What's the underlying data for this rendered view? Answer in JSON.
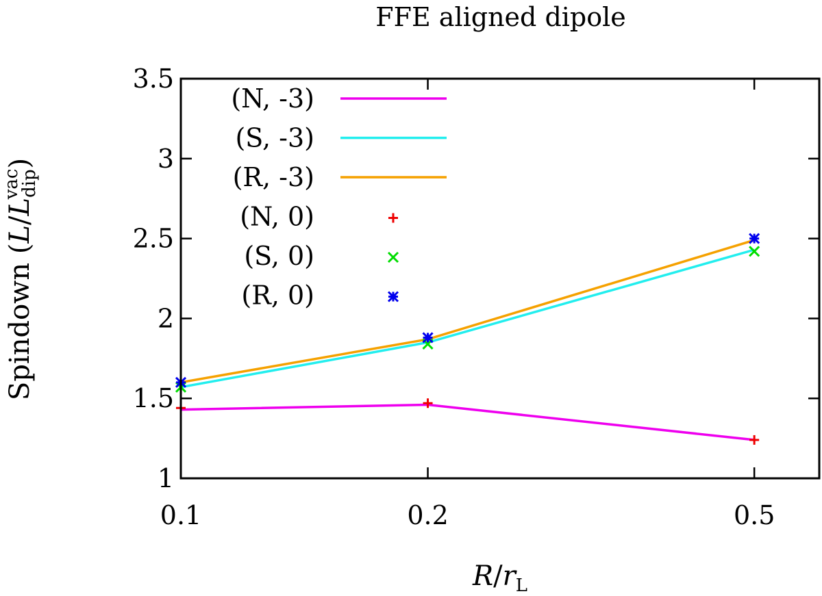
{
  "chart_data": {
    "type": "line",
    "title": "FFE aligned dipole",
    "xlabel": {
      "var": "R",
      "slash": "/",
      "var2": "r",
      "sub": "L"
    },
    "ylabel": {
      "prefix": "Spindown (",
      "var": "L",
      "slash": "/",
      "var2": "L",
      "sub": "dip",
      "sup": "vac",
      "suffix": ")"
    },
    "x_scale": "log",
    "xlim": [
      0.1,
      0.6
    ],
    "ylim": [
      1,
      3.5
    ],
    "x_ticks": [
      0.1,
      0.2,
      0.5
    ],
    "x_tick_labels": [
      "0.1",
      "0.2",
      "0.5"
    ],
    "y_ticks": [
      1,
      1.5,
      2,
      2.5,
      3,
      3.5
    ],
    "y_tick_labels": [
      "1",
      "1.5",
      "2",
      "2.5",
      "3",
      "3.5"
    ],
    "legend_position": "top-left",
    "series": [
      {
        "name": "(N, -3)",
        "style": "line",
        "color": "#ee00ee",
        "x": [
          0.1,
          0.2,
          0.5
        ],
        "values": [
          1.43,
          1.46,
          1.24
        ]
      },
      {
        "name": "(S, -3)",
        "style": "line",
        "color": "#22eeee",
        "x": [
          0.1,
          0.2,
          0.5
        ],
        "values": [
          1.57,
          1.85,
          2.43
        ]
      },
      {
        "name": "(R, -3)",
        "style": "line",
        "color": "#f5a100",
        "x": [
          0.1,
          0.2,
          0.5
        ],
        "values": [
          1.6,
          1.87,
          2.49
        ]
      },
      {
        "name": "(N, 0)",
        "style": "plus",
        "color": "#ee0000",
        "x": [
          0.1,
          0.2,
          0.5
        ],
        "values": [
          1.44,
          1.47,
          1.24
        ]
      },
      {
        "name": "(S, 0)",
        "style": "cross",
        "color": "#00dd00",
        "x": [
          0.1,
          0.2,
          0.5
        ],
        "values": [
          1.57,
          1.84,
          2.42
        ]
      },
      {
        "name": "(R, 0)",
        "style": "star",
        "color": "#0000ee",
        "x": [
          0.1,
          0.2,
          0.5
        ],
        "values": [
          1.6,
          1.88,
          2.5
        ]
      }
    ]
  }
}
